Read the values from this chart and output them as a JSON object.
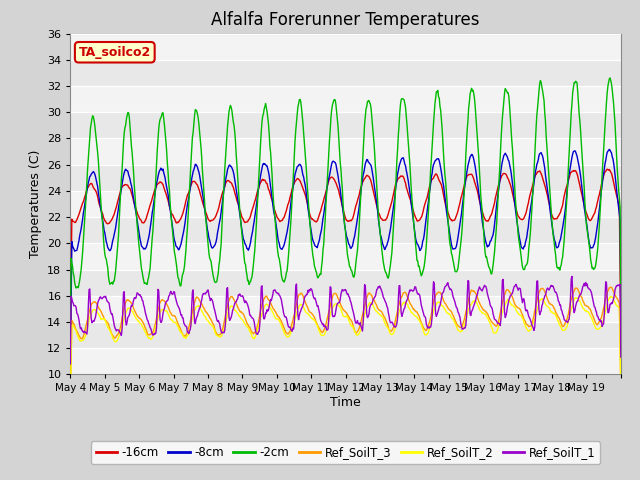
{
  "title": "Alfalfa Forerunner Temperatures",
  "xlabel": "Time",
  "ylabel": "Temperatures (C)",
  "ylim": [
    10,
    36
  ],
  "yticks": [
    10,
    12,
    14,
    16,
    18,
    20,
    22,
    24,
    26,
    28,
    30,
    32,
    34,
    36
  ],
  "annotation_text": "TA_soilco2",
  "annotation_color": "#cc0000",
  "annotation_bg": "#ffffcc",
  "fig_facecolor": "#d4d4d4",
  "plot_facecolor": "#e8e8e8",
  "grid_color": "#ffffff",
  "series": {
    "neg16cm": {
      "color": "#dd0000",
      "label": "-16cm"
    },
    "neg8cm": {
      "color": "#0000cc",
      "label": "-8cm"
    },
    "neg2cm": {
      "color": "#00bb00",
      "label": "-2cm"
    },
    "ref3": {
      "color": "#ff9900",
      "label": "Ref_SoilT_3"
    },
    "ref2": {
      "color": "#ffff00",
      "label": "Ref_SoilT_2"
    },
    "ref1": {
      "color": "#9900cc",
      "label": "Ref_SoilT_1"
    }
  },
  "x_tick_labels": [
    "May 4",
    "May 5",
    "May 6",
    "May 7",
    "May 8",
    "May 9",
    "May 10",
    "May 11",
    "May 12",
    "May 13",
    "May 14",
    "May 15",
    "May 16",
    "May 17",
    "May 18",
    "May 19"
  ],
  "n_days": 16,
  "points_per_day": 48
}
